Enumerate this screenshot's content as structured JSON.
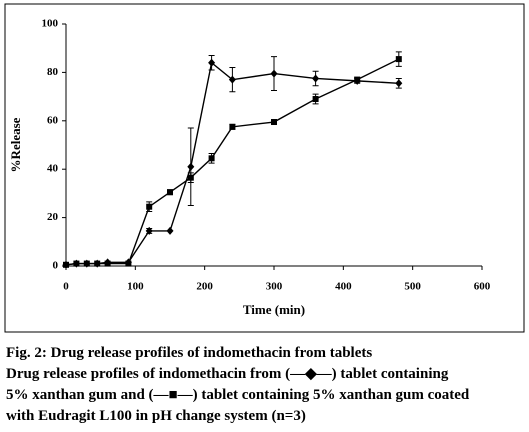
{
  "chart_data": {
    "type": "line",
    "x_label": "Time (min)",
    "y_label": "%Release",
    "xlim": [
      0,
      600
    ],
    "xticks": [
      0,
      100,
      200,
      300,
      400,
      500,
      600
    ],
    "ylim": [
      0,
      100
    ],
    "yticks": [
      0,
      20,
      40,
      60,
      80,
      100
    ],
    "series": [
      {
        "marker": "diamond",
        "color": "#000000",
        "x": [
          0,
          15,
          30,
          45,
          60,
          90,
          120,
          150,
          180,
          210,
          240,
          300,
          360,
          420,
          480
        ],
        "values": [
          0.5,
          1,
          1,
          1,
          1.5,
          1.5,
          14.5,
          14.5,
          41,
          84,
          77,
          79.5,
          77.5,
          76.5,
          75.5
        ],
        "errors": [
          null,
          null,
          null,
          null,
          null,
          null,
          1,
          null,
          16,
          3,
          5,
          7,
          3,
          1,
          2
        ]
      },
      {
        "marker": "square",
        "color": "#000000",
        "x": [
          0,
          15,
          30,
          45,
          60,
          90,
          120,
          150,
          180,
          210,
          240,
          300,
          360,
          420,
          480
        ],
        "values": [
          0.5,
          1,
          1,
          1,
          1,
          1,
          24.5,
          30.5,
          36.5,
          44.5,
          57.5,
          59.5,
          69,
          77,
          85.5
        ],
        "errors": [
          null,
          null,
          null,
          null,
          null,
          null,
          2,
          1,
          2,
          2,
          1,
          1,
          2,
          1,
          3
        ]
      }
    ]
  },
  "caption": {
    "title": "Fig. 2: Drug release profiles of indomethacin from tablets",
    "lines": [
      "Drug release profiles of indomethacin from (—◆—) tablet containing",
      "5% xanthan gum and (—■—) tablet containing 5% xanthan gum coated",
      "with Eudragit L100 in pH change system (n=3)"
    ]
  }
}
